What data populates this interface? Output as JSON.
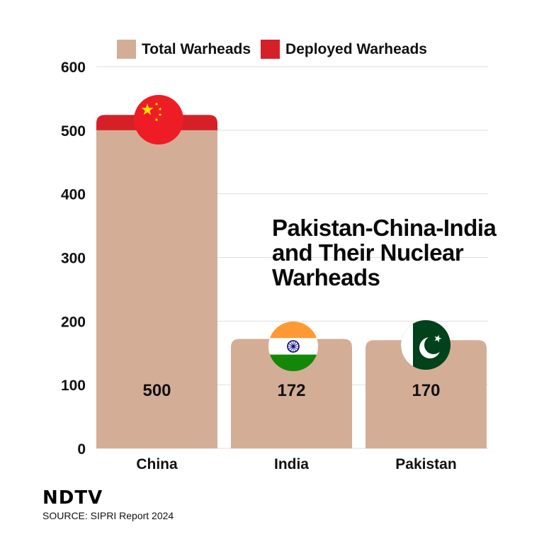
{
  "chart_data": {
    "type": "bar",
    "title": "Pakistan-China-India and Their Nuclear Warheads",
    "categories": [
      "China",
      "India",
      "Pakistan"
    ],
    "series": [
      {
        "name": "Total Warheads",
        "values": [
          500,
          172,
          170
        ],
        "color": "#d4ad96"
      },
      {
        "name": "Deployed Warheads",
        "values": [
          24,
          0,
          0
        ],
        "color": "#d62027"
      }
    ],
    "data_labels": [
      "500",
      "172",
      "170"
    ],
    "y_ticks": [
      "0",
      "100",
      "200",
      "300",
      "400",
      "500",
      "600"
    ],
    "ylim": [
      0,
      600
    ],
    "grid": true,
    "legend_position": "top-center",
    "flag_icons": [
      "china-flag-icon",
      "india-flag-icon",
      "pakistan-flag-icon"
    ]
  },
  "legend": {
    "total_label": "Total Warheads",
    "deployed_label": "Deployed Warheads"
  },
  "title": "Pakistan-China-India and Their Nuclear Warheads",
  "brand": "NDTV",
  "source": "SOURCE: SIPRI Report 2024"
}
